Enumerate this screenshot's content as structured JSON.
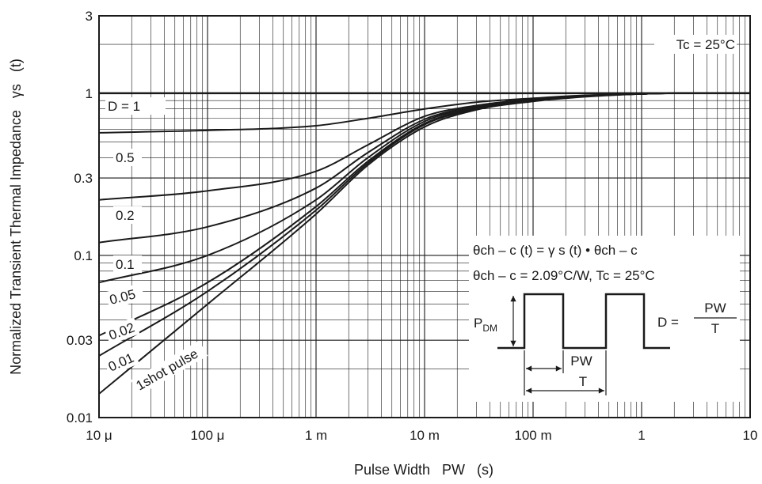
{
  "chart_data": {
    "type": "line",
    "x_scale": "log",
    "y_scale": "log",
    "xlim": [
      1e-05,
      10
    ],
    "ylim": [
      0.01,
      3
    ],
    "grid": true,
    "xlabel": "Pulse Width   PW   (s)",
    "ylabel": "Normalized Transient Thermal Impedance   γs   (t)",
    "x_ticks": [
      {
        "value": 1e-05,
        "label": "10 μ"
      },
      {
        "value": 0.0001,
        "label": "100 μ"
      },
      {
        "value": 0.001,
        "label": "1 m"
      },
      {
        "value": 0.01,
        "label": "10 m"
      },
      {
        "value": 0.1,
        "label": "100 m"
      },
      {
        "value": 1,
        "label": "1"
      },
      {
        "value": 10,
        "label": "10"
      }
    ],
    "y_ticks": [
      {
        "value": 0.01,
        "label": "0.01"
      },
      {
        "value": 0.03,
        "label": "0.03"
      },
      {
        "value": 0.1,
        "label": "0.1"
      },
      {
        "value": 0.3,
        "label": "0.3"
      },
      {
        "value": 1,
        "label": "1"
      },
      {
        "value": 3,
        "label": "3"
      }
    ],
    "series": [
      {
        "name": "D = 1",
        "x": [
          1e-05,
          10
        ],
        "y": [
          1.0,
          1.0
        ]
      },
      {
        "name": "0.5",
        "x": [
          1e-05,
          0.0001,
          0.001,
          0.003,
          0.01,
          0.03,
          0.1,
          0.3,
          1,
          2,
          10
        ],
        "y": [
          0.57,
          0.59,
          0.63,
          0.7,
          0.8,
          0.88,
          0.93,
          0.97,
          0.99,
          1.0,
          1.0
        ]
      },
      {
        "name": "0.2",
        "x": [
          1e-05,
          0.0001,
          0.001,
          0.003,
          0.01,
          0.03,
          0.1,
          0.3,
          1,
          2,
          10
        ],
        "y": [
          0.22,
          0.25,
          0.33,
          0.48,
          0.72,
          0.84,
          0.92,
          0.96,
          0.99,
          1.0,
          1.0
        ]
      },
      {
        "name": "0.1",
        "x": [
          1e-05,
          0.0001,
          0.001,
          0.003,
          0.01,
          0.03,
          0.1,
          0.3,
          1,
          2,
          10
        ],
        "y": [
          0.12,
          0.15,
          0.26,
          0.43,
          0.69,
          0.83,
          0.91,
          0.96,
          0.99,
          1.0,
          1.0
        ]
      },
      {
        "name": "0.05",
        "x": [
          1e-05,
          0.0001,
          0.001,
          0.003,
          0.01,
          0.03,
          0.1,
          0.3,
          1,
          2,
          10
        ],
        "y": [
          0.068,
          0.1,
          0.22,
          0.4,
          0.67,
          0.82,
          0.9,
          0.96,
          0.99,
          1.0,
          1.0
        ]
      },
      {
        "name": "0.02",
        "x": [
          1e-05,
          0.0001,
          0.001,
          0.003,
          0.01,
          0.03,
          0.1,
          0.3,
          1,
          2,
          10
        ],
        "y": [
          0.032,
          0.068,
          0.2,
          0.38,
          0.65,
          0.81,
          0.9,
          0.96,
          0.99,
          1.0,
          1.0
        ]
      },
      {
        "name": "0.01",
        "x": [
          1e-05,
          0.0001,
          0.001,
          0.003,
          0.01,
          0.03,
          0.1,
          0.3,
          1,
          2,
          10
        ],
        "y": [
          0.024,
          0.06,
          0.19,
          0.37,
          0.64,
          0.8,
          0.9,
          0.96,
          0.99,
          1.0,
          1.0
        ]
      },
      {
        "name": "1shot pulse",
        "x": [
          1e-05,
          0.0001,
          0.001,
          0.003,
          0.01,
          0.03,
          0.1,
          0.3,
          1,
          2,
          10
        ],
        "y": [
          0.014,
          0.05,
          0.18,
          0.36,
          0.62,
          0.79,
          0.89,
          0.95,
          0.99,
          1.0,
          1.0
        ]
      }
    ],
    "annotations": {
      "tc": "Tc = 25°C",
      "formula1": "θch – c (t) = γ s (t) • θch – c",
      "formula2": "θch – c = 2.09°C/W, Tc = 25°C",
      "pdm_main": "P",
      "pdm_sub": "DM",
      "d_label": "D =",
      "d_num": "PW",
      "d_den": "T",
      "pw_label": "PW",
      "t_label": "T"
    }
  },
  "colors": {
    "curve": "#1a1a1a",
    "grid": "#1a1a1a",
    "background": "#ffffff"
  }
}
